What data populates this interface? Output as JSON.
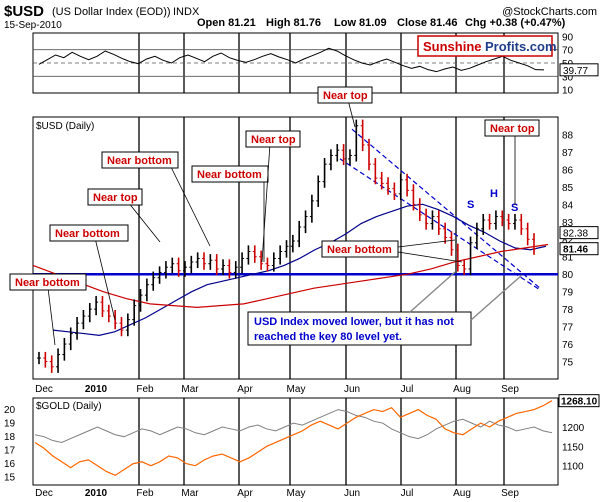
{
  "header": {
    "symbol": "$USD",
    "name": "(US Dollar Index (EOD))",
    "exchange": "INDX",
    "date": "15-Sep-2010",
    "open": "Open 81.21",
    "high": "High 81.76",
    "low": "Low 81.09",
    "close": "Close 81.46",
    "chg": "Chg +0.38 (+0.47%)",
    "brand": "@StockCharts.com",
    "watermark_a": "Sunshine",
    "watermark_b": "Profits.com"
  },
  "colors": {
    "price_bar": "#cc0000",
    "price_up": "#000000",
    "ma_short": "#cc0000",
    "ma_long": "#00008b",
    "level_line": "#0000cc",
    "channel": "#0000cc",
    "gold": "#ff6600",
    "usd_overlay": "#808080",
    "note_text": "#cc0000",
    "note_box_border": "#000000",
    "callout_text": "#0000cc"
  },
  "chart_data": [
    {
      "type": "line",
      "title": "RSI panel",
      "y_ticks": [
        "90",
        "70",
        "50",
        "30",
        "10"
      ],
      "current_value_label": "39.77",
      "levels": [
        70,
        50,
        30
      ],
      "x_months": [
        "Dec",
        "2010",
        "Feb",
        "Mar",
        "Apr",
        "May",
        "Jun",
        "Jul",
        "Aug",
        "Sep"
      ],
      "rsi": [
        48,
        55,
        62,
        58,
        66,
        60,
        55,
        60,
        68,
        63,
        57,
        52,
        49,
        56,
        60,
        54,
        50,
        58,
        62,
        57,
        52,
        60,
        65,
        58,
        54,
        51,
        55,
        60,
        64,
        59,
        55,
        50,
        56,
        61,
        66,
        72,
        68,
        61,
        55,
        50,
        47,
        52,
        56,
        51,
        46,
        42,
        45,
        40,
        37,
        41,
        44,
        39,
        42,
        47,
        52,
        56,
        60,
        54,
        50,
        46,
        40,
        39.77
      ]
    },
    {
      "type": "line",
      "title": "$USD (Daily)",
      "ylabel": "",
      "ylim": [
        74,
        89
      ],
      "y_ticks": [
        "88",
        "87",
        "86",
        "85",
        "84",
        "83",
        "82",
        "81",
        "80",
        "79",
        "78",
        "77",
        "76",
        "75"
      ],
      "x_months": [
        "Dec",
        "2010",
        "Feb",
        "Mar",
        "Apr",
        "May",
        "Jun",
        "Jul",
        "Aug",
        "Sep"
      ],
      "price": [
        75.2,
        75.0,
        74.7,
        75.4,
        76.0,
        76.6,
        77.2,
        77.6,
        78.0,
        78.4,
        77.9,
        77.6,
        77.2,
        76.8,
        77.4,
        78.2,
        78.8,
        79.4,
        79.8,
        80.1,
        80.4,
        80.6,
        80.2,
        80.4,
        80.7,
        80.9,
        80.6,
        80.8,
        80.3,
        80.5,
        80.1,
        80.4,
        80.9,
        81.3,
        81.0,
        80.6,
        80.5,
        80.9,
        81.3,
        81.6,
        81.9,
        82.7,
        83.3,
        84.2,
        85.3,
        86.3,
        86.8,
        87.1,
        86.6,
        86.8,
        88.5,
        87.4,
        86.3,
        85.5,
        85.2,
        84.9,
        84.6,
        85.4,
        84.8,
        84.0,
        83.4,
        82.9,
        83.3,
        82.6,
        82.1,
        81.4,
        80.5,
        80.3,
        81.8,
        82.6,
        83.1,
        82.9,
        83.3,
        83.1,
        82.9,
        83.1,
        82.6,
        82.0,
        81.46
      ],
      "moving_avg_short": [
        76.8,
        76.7,
        76.6,
        76.5,
        76.7,
        77.1,
        77.5,
        78.0,
        78.5,
        79.0,
        79.4,
        79.6,
        79.8,
        80.0,
        80.2,
        80.5,
        80.9,
        81.4,
        81.8,
        82.3,
        82.9,
        83.3,
        83.6,
        83.9,
        84.0,
        83.7,
        83.3,
        82.8,
        82.4,
        81.9,
        81.5,
        81.4,
        81.6
      ],
      "moving_avg_long": [
        80.5,
        80.0,
        79.5,
        79.0,
        78.6,
        78.3,
        78.2,
        78.1,
        78.2,
        78.3,
        78.6,
        78.9,
        79.2,
        79.4,
        79.6,
        79.8,
        80.0,
        80.3,
        80.7,
        81.0,
        81.3,
        81.5,
        81.7
      ],
      "key_level": 80,
      "price_labels": [
        "82.38",
        "81.46"
      ],
      "pattern_labels": [
        "S",
        "H",
        "S"
      ],
      "annotations": [
        "Near bottom",
        "Near top",
        "Near bottom",
        "Near bottom",
        "Near top",
        "Near top",
        "Near bottom",
        "Near top"
      ],
      "callout": [
        "USD Index moved lower, but it has not",
        "reached the key 80 level yet."
      ]
    },
    {
      "type": "line",
      "title": "$GOLD (Daily)",
      "ylim": [
        1050,
        1275
      ],
      "y_ticks_left": [
        "20",
        "19",
        "18",
        "17",
        "16",
        "15"
      ],
      "y_ticks_right": [
        "1200",
        "1150",
        "1100"
      ],
      "current_value_label": "1268.10",
      "x_months": [
        "Dec",
        "2010",
        "Feb",
        "Mar",
        "Apr",
        "May",
        "Jun",
        "Jul",
        "Aug",
        "Sep"
      ],
      "gold": [
        1160,
        1145,
        1125,
        1110,
        1095,
        1110,
        1115,
        1100,
        1085,
        1075,
        1090,
        1105,
        1110,
        1100,
        1110,
        1125,
        1120,
        1105,
        1100,
        1115,
        1125,
        1130,
        1120,
        1110,
        1120,
        1135,
        1150,
        1160,
        1170,
        1180,
        1190,
        1205,
        1215,
        1205,
        1195,
        1210,
        1225,
        1235,
        1245,
        1240,
        1250,
        1225,
        1235,
        1245,
        1230,
        1220,
        1195,
        1185,
        1180,
        1195,
        1210,
        1200,
        1215,
        1225,
        1235,
        1240,
        1245,
        1255,
        1268.1
      ],
      "usd_overlay": [
        1180,
        1175,
        1165,
        1160,
        1170,
        1180,
        1190,
        1200,
        1190,
        1180,
        1175,
        1185,
        1195,
        1190,
        1180,
        1190,
        1200,
        1195,
        1185,
        1180,
        1190,
        1200,
        1195,
        1190,
        1200,
        1205,
        1195,
        1190,
        1200,
        1210,
        1205,
        1215,
        1225,
        1235,
        1245,
        1240,
        1230,
        1225,
        1215,
        1210,
        1195,
        1185,
        1175,
        1170,
        1180,
        1195,
        1205,
        1215,
        1220,
        1210,
        1200,
        1215,
        1205,
        1200,
        1190,
        1195,
        1200,
        1190,
        1185
      ]
    }
  ]
}
